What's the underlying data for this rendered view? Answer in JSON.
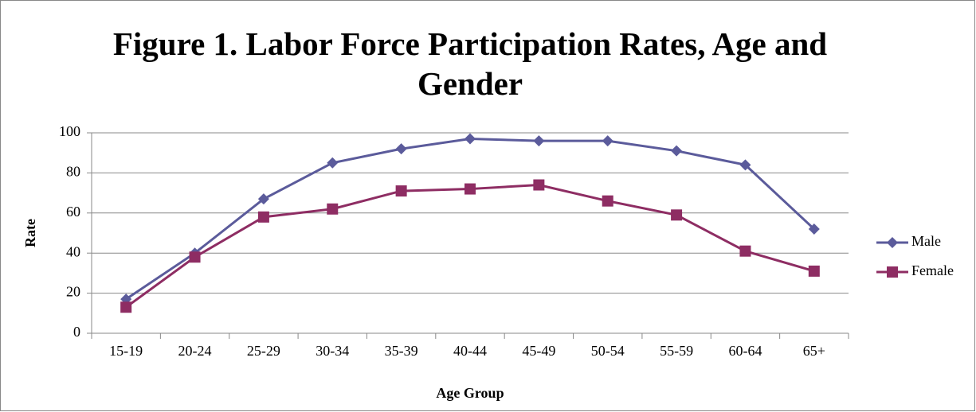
{
  "chart_data": {
    "type": "line",
    "title": "Figure 1. Labor Force Participation Rates, Age and Gender",
    "x_label": "Age Group",
    "y_label": "Rate",
    "categories": [
      "15-19",
      "20-24",
      "25-29",
      "30-34",
      "35-39",
      "40-44",
      "45-49",
      "50-54",
      "55-59",
      "60-64",
      "65+"
    ],
    "series": [
      {
        "name": "Male",
        "color": "#5b5b9b",
        "marker": "diamond",
        "values": [
          17,
          40,
          67,
          85,
          92,
          97,
          96,
          96,
          91,
          84,
          52
        ]
      },
      {
        "name": "Female",
        "color": "#8e2d63",
        "marker": "square",
        "values": [
          13,
          38,
          58,
          62,
          71,
          72,
          74,
          66,
          59,
          41,
          31
        ]
      }
    ],
    "ylim": [
      0,
      100
    ],
    "yticks": [
      0,
      20,
      40,
      60,
      80,
      100
    ],
    "grid": true,
    "legend": "right"
  }
}
